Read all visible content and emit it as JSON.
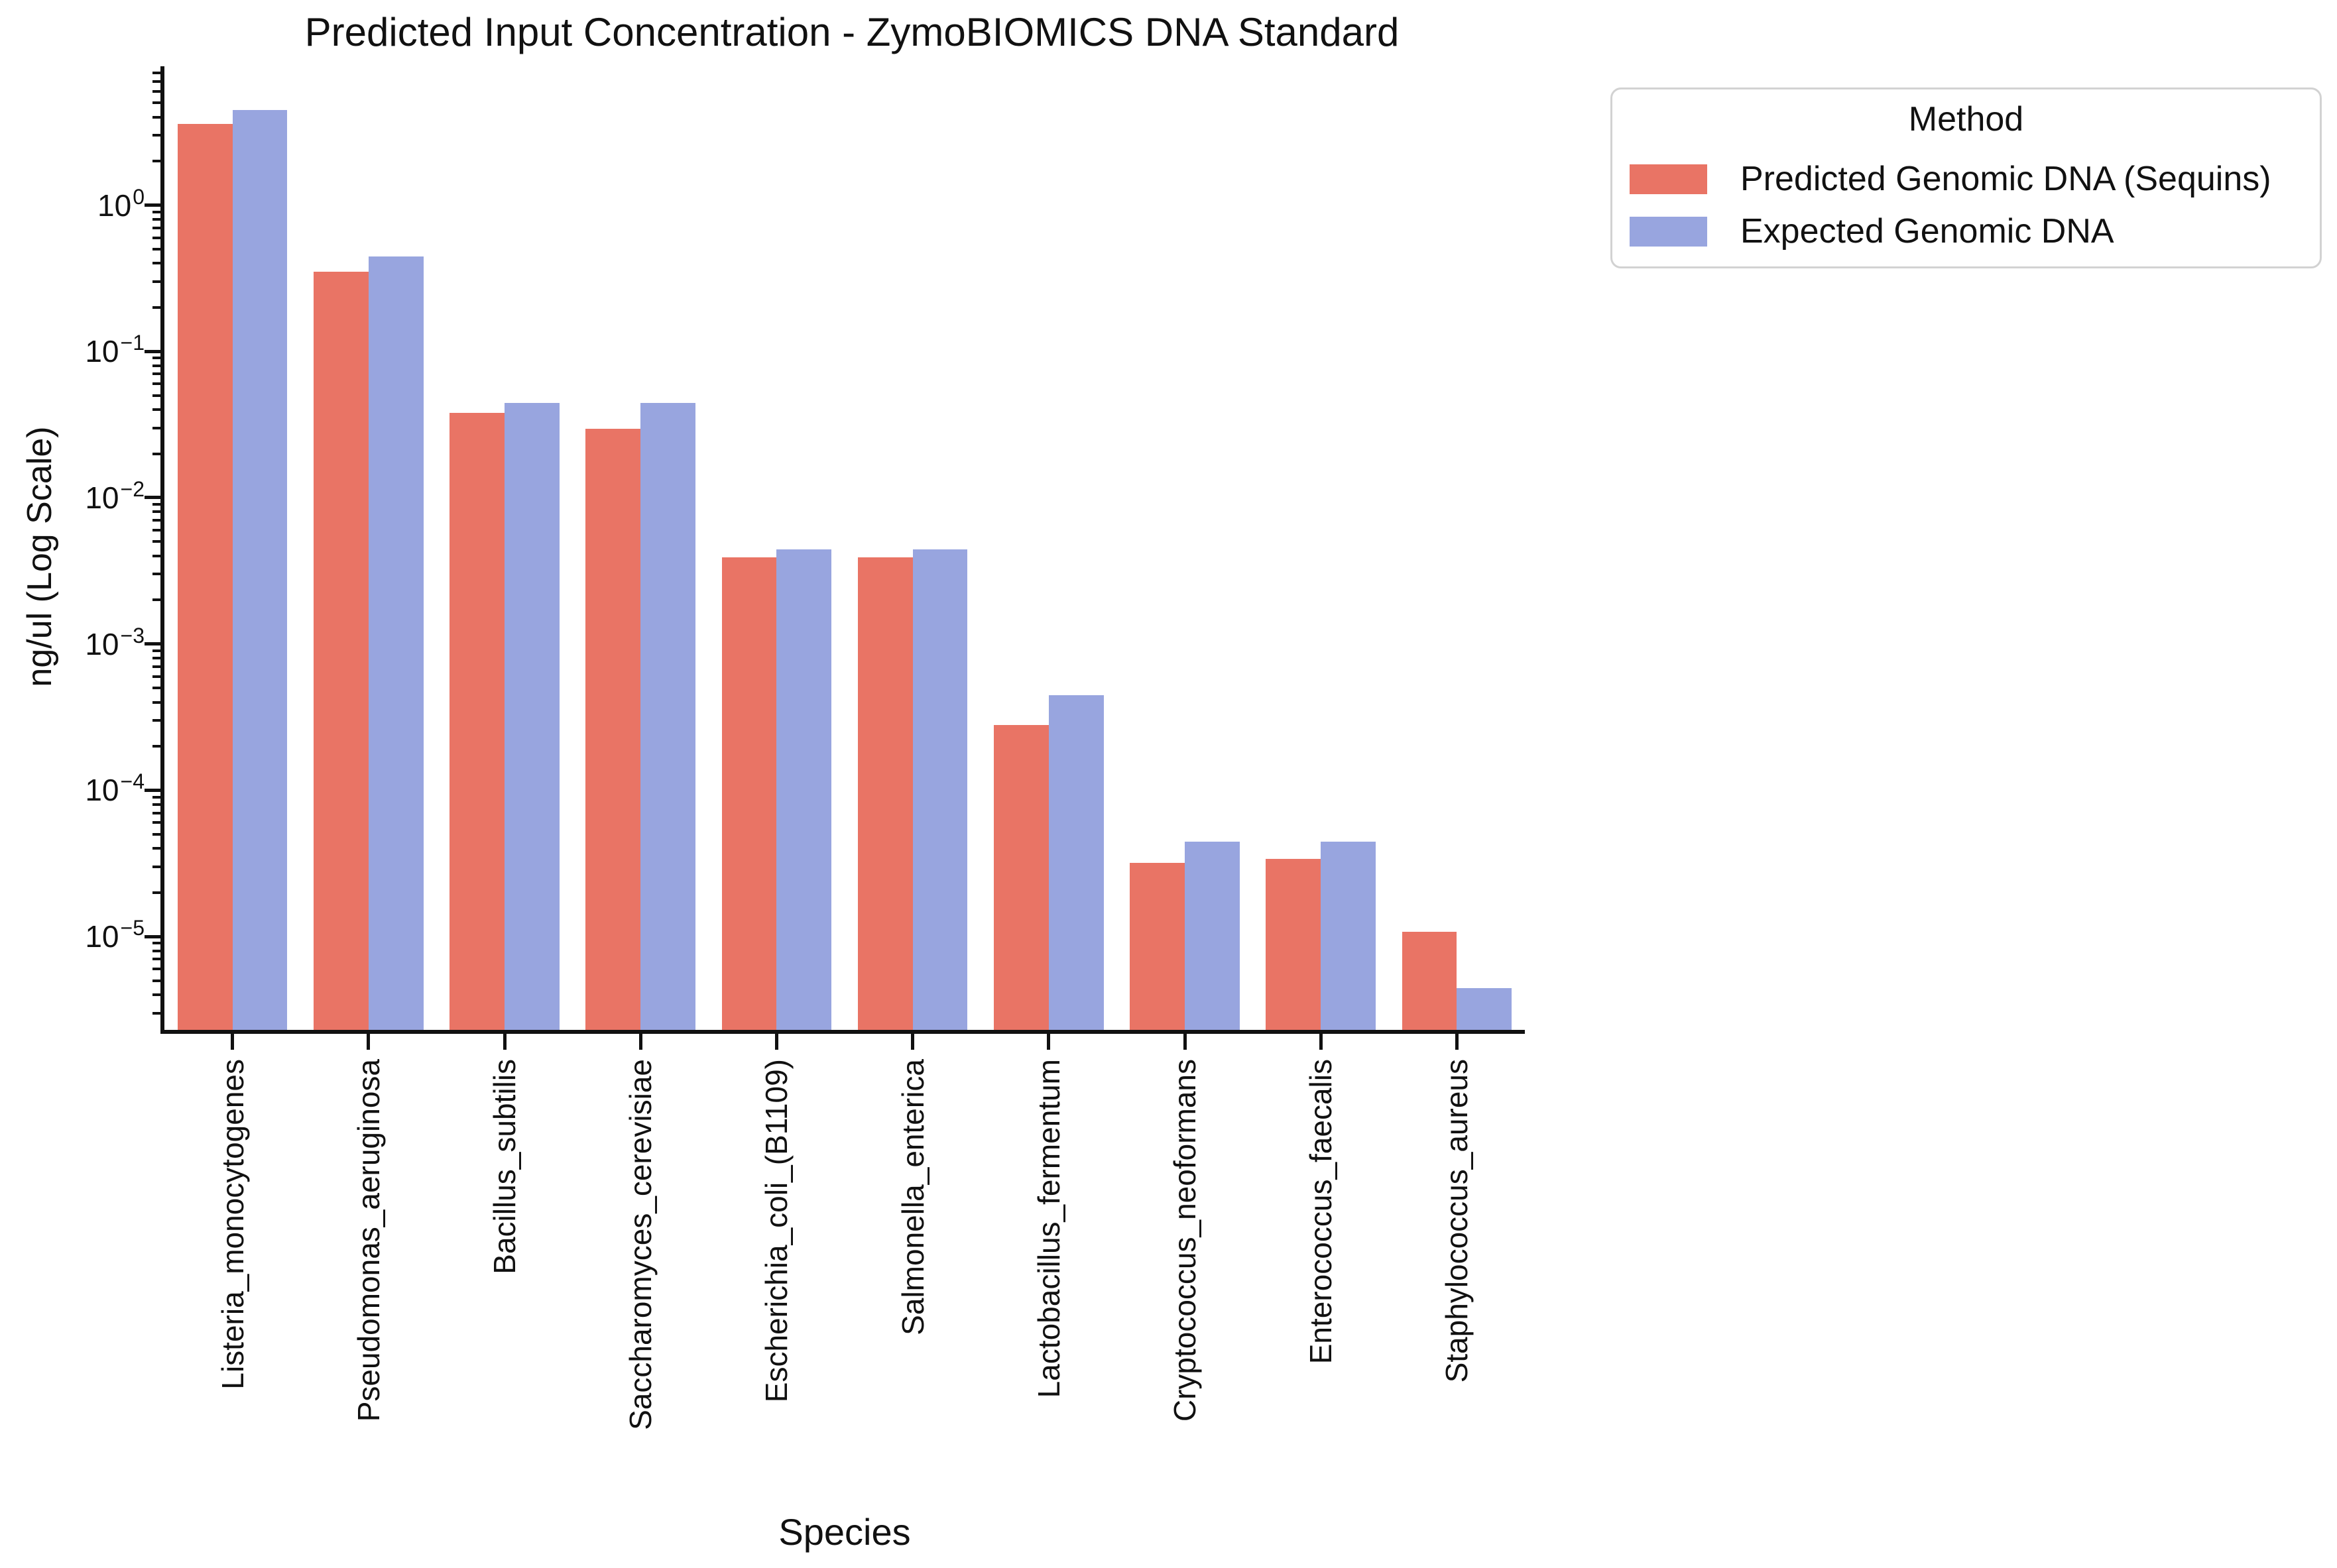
{
  "chart_data": {
    "type": "bar",
    "title": "Predicted Input Concentration - ZymoBIOMICS DNA Standard",
    "xlabel": "Species",
    "ylabel": "ng/ul (Log Scale)",
    "yscale": "log",
    "ylim": [
      2.3e-06,
      8.9
    ],
    "ytick_exponents": [
      0,
      -1,
      -2,
      -3,
      -4,
      -5
    ],
    "grid": false,
    "background": "#ffffff",
    "legend": {
      "title": "Method",
      "position": "upper-right-outside"
    },
    "categories": [
      "Listeria_monocytogenes",
      "Pseudomonas_aeruginosa",
      "Bacillus_subtilis",
      "Saccharomyces_cerevisiae",
      "Escherichia_coli_(B1109)",
      "Salmonella_enterica",
      "Lactobacillus_fermentum",
      "Cryptococcus_neoformans",
      "Enterococcus_faecalis",
      "Staphylococcus_aureus"
    ],
    "series": [
      {
        "name": "Predicted Genomic DNA (Sequins)",
        "color": "#e97465",
        "values": [
          3.6,
          0.35,
          0.038,
          0.0295,
          0.0039,
          0.0039,
          0.00028,
          3.2e-05,
          3.4e-05,
          1.08e-05
        ]
      },
      {
        "name": "Expected Genomic DNA",
        "color": "#98a5df",
        "values": [
          4.45,
          0.445,
          0.0445,
          0.0445,
          0.00445,
          0.00445,
          0.000445,
          4.45e-05,
          4.45e-05,
          4.45e-06
        ]
      }
    ]
  },
  "colors": {
    "text": "#111111",
    "axis": "#111111",
    "legend_border": "#d2d2d2",
    "background": "#ffffff"
  }
}
